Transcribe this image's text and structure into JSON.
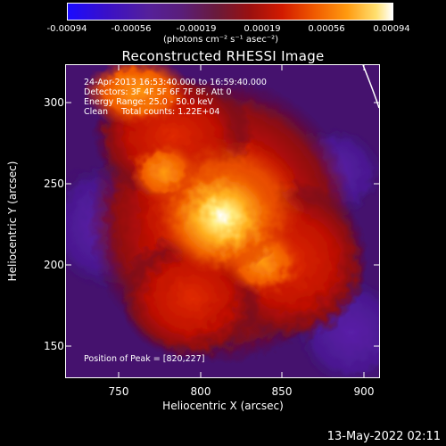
{
  "colorbar": {
    "tick_labels": [
      "-0.00094",
      "-0.00056",
      "-0.00019",
      "0.00019",
      "0.00056",
      "0.00094"
    ],
    "units": "(photons cm⁻² s⁻¹ asec⁻²)"
  },
  "plot": {
    "title": "Reconstructed RHESSI Image",
    "info_lines": [
      "24-Apr-2013 16:53:40.000 to 16:59:40.000",
      "Detectors: 3F 4F 5F 6F 7F 8F, Att 0",
      "Energy Range: 25.0 - 50.0 keV",
      "Clean     Total counts: 1.22E+04"
    ],
    "peak_text": "Position of Peak = [820,227]",
    "x_label": "Heliocentric X (arcsec)",
    "y_label": "Heliocentric Y (arcsec)",
    "x_ticks": [
      "750",
      "800",
      "850",
      "900"
    ],
    "y_ticks": [
      "300",
      "250",
      "200",
      "150"
    ],
    "x_range": [
      718,
      910
    ],
    "y_range": [
      128,
      322
    ]
  },
  "footer": {
    "datestamp": "13-May-2022 02:11"
  },
  "colors": {
    "background": "#000000",
    "text": "#ffffff"
  }
}
